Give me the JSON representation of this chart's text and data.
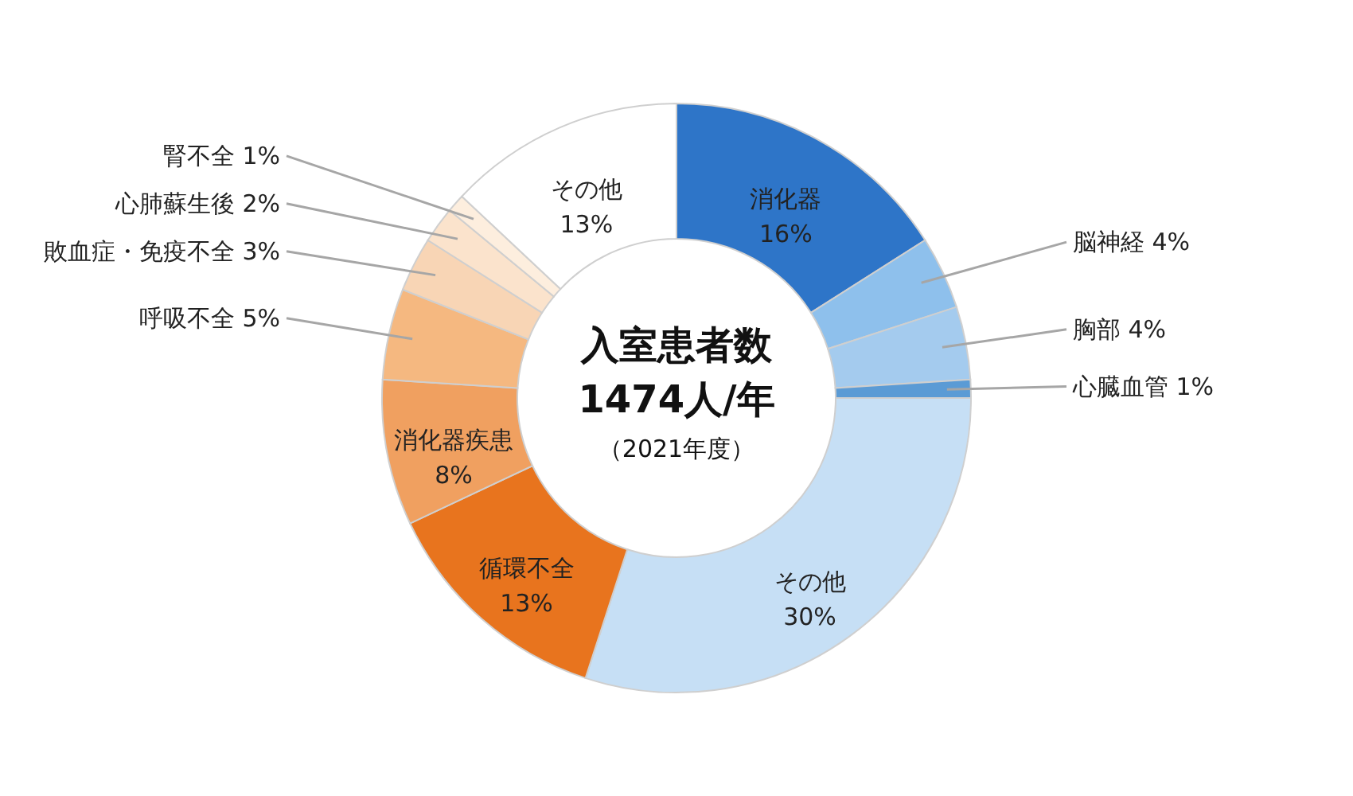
{
  "chart_data": {
    "type": "donut",
    "categories": [
      "消化器",
      "脳神経",
      "胸部",
      "心臓血管",
      "その他",
      "循環不全",
      "消化器疾患",
      "呼吸不全",
      "敗血症・免疫不全",
      "心肺蘇生後",
      "腎不全",
      "その他"
    ],
    "values": [
      16,
      4,
      4,
      1,
      30,
      13,
      8,
      5,
      3,
      2,
      1,
      13
    ],
    "value_labels": [
      "16%",
      "4%",
      "4%",
      "1%",
      "30%",
      "13%",
      "8%",
      "5%",
      "3%",
      "2%",
      "1%",
      "13%"
    ],
    "colors": [
      "#2e75c8",
      "#8ec0ec",
      "#a4cbee",
      "#5b9bd5",
      "#c6dff5",
      "#e8741e",
      "#f0a060",
      "#f5b880",
      "#f8d5b5",
      "#fbe3cc",
      "#fdeede",
      "#ffffff"
    ],
    "annotations": [
      "入室患者数",
      "1474人/年",
      "（2021年度）"
    ]
  }
}
